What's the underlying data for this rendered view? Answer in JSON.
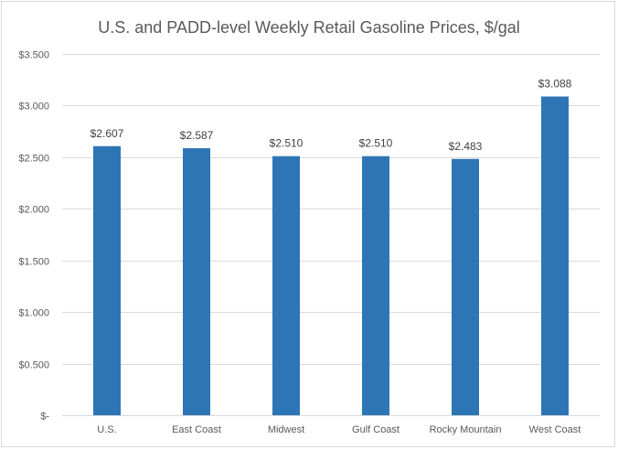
{
  "chart_data": {
    "type": "bar",
    "title": "U.S. and PADD-level Weekly Retail Gasoline Prices, $/gal",
    "xlabel": "",
    "ylabel": "",
    "categories": [
      "U.S.",
      "East Coast",
      "Midwest",
      "Gulf Coast",
      "Rocky Mountain",
      "West Coast"
    ],
    "values": [
      2.607,
      2.587,
      2.51,
      2.51,
      2.483,
      3.088
    ],
    "value_labels": [
      "$2.607",
      "$2.587",
      "$2.510",
      "$2.510",
      "$2.483",
      "$3.088"
    ],
    "ylim": [
      0,
      3.5
    ],
    "yticks": [
      0,
      0.5,
      1.0,
      1.5,
      2.0,
      2.5,
      3.0,
      3.5
    ],
    "ytick_labels": [
      "$-",
      "$0.500",
      "$1.000",
      "$1.500",
      "$2.000",
      "$2.500",
      "$3.000",
      "$3.500"
    ],
    "grid": true,
    "legend": "none",
    "bar_color": "#2e75b6",
    "grid_color": "#d9d9d9",
    "text_color": "#595959"
  }
}
